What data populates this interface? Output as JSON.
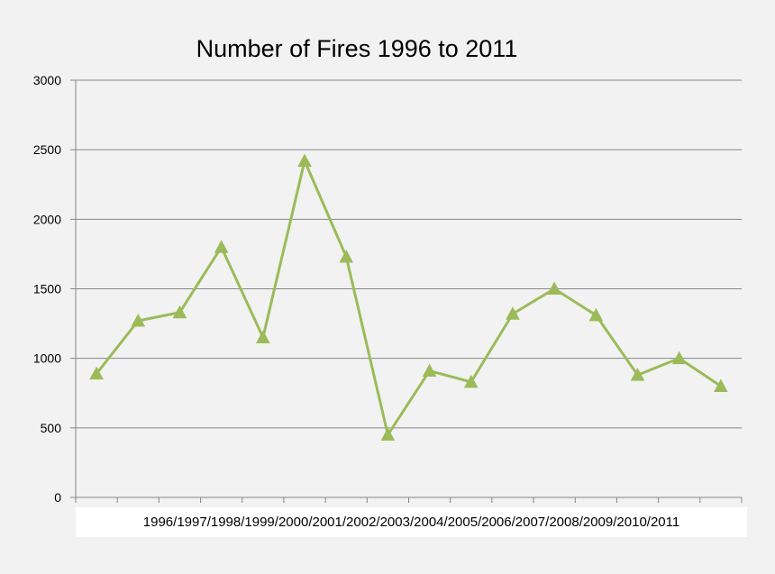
{
  "chart_data": {
    "type": "line",
    "title": "Number of Fires 1996 to 2011",
    "xlabel": "",
    "ylabel": "",
    "categories": [
      "1996",
      "1997",
      "1998",
      "1999",
      "2000",
      "2001",
      "2002",
      "2003",
      "2004",
      "2005",
      "2006",
      "2007",
      "2008",
      "2009",
      "2010",
      "2011"
    ],
    "series": [
      {
        "values": [
          890,
          1270,
          1330,
          1800,
          1150,
          2420,
          1730,
          450,
          910,
          830,
          1320,
          1500,
          1310,
          880,
          1000,
          800
        ],
        "color": "#9bbb59",
        "marker": "triangle"
      }
    ],
    "ylim": [
      0,
      3000
    ],
    "yticks": [
      "0",
      "500",
      "1000",
      "1500",
      "2000",
      "2500",
      "3000"
    ],
    "grid": true,
    "legend": "none",
    "gridline_color": "#868686",
    "plot_background": "#f2f2f2",
    "category_label_background": "#ffffff"
  }
}
